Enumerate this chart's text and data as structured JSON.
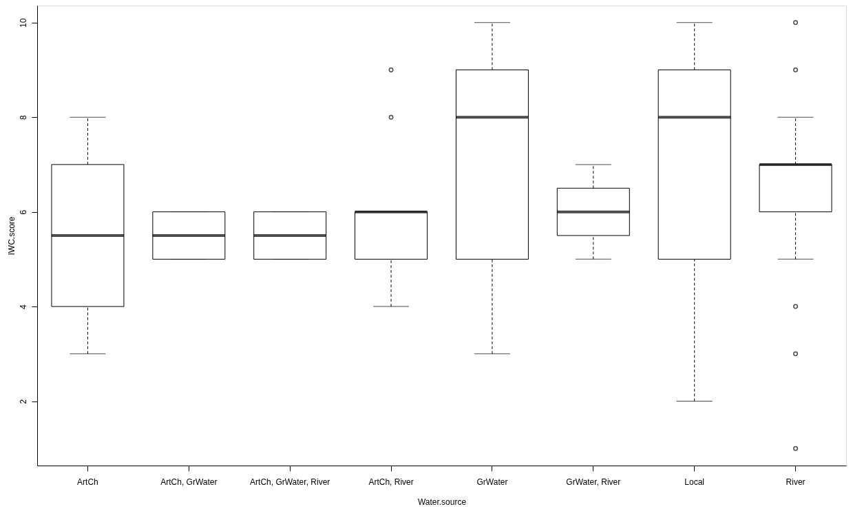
{
  "chart_data": {
    "type": "box",
    "xlabel": "Water.source",
    "ylabel": "IWC.score",
    "categories": [
      "ArtCh",
      "ArtCh, GrWater",
      "ArtCh, GrWater, River",
      "ArtCh, River",
      "GrWater",
      "GrWater, River",
      "Local",
      "River"
    ],
    "boxes": [
      {
        "low": 3,
        "q1": 4,
        "median": 5.5,
        "q3": 7,
        "high": 8
      },
      {
        "low": 5,
        "q1": 5,
        "median": 5.5,
        "q3": 6,
        "high": 6
      },
      {
        "low": 5,
        "q1": 5,
        "median": 5.5,
        "q3": 6,
        "high": 6
      },
      {
        "low": 4,
        "q1": 5,
        "median": 6,
        "q3": 6,
        "high": 6,
        "outliers": [
          8,
          9
        ]
      },
      {
        "low": 3,
        "q1": 5,
        "median": 8,
        "q3": 9,
        "high": 10
      },
      {
        "low": 5,
        "q1": 5.5,
        "median": 6,
        "q3": 6.5,
        "high": 7
      },
      {
        "low": 2,
        "q1": 5,
        "median": 8,
        "q3": 9,
        "high": 10
      },
      {
        "low": 5,
        "q1": 6,
        "median": 7,
        "q3": 7,
        "high": 8,
        "outliers": [
          10,
          9,
          4,
          3,
          1
        ]
      }
    ],
    "ylim": [
      0.64,
      10.36
    ],
    "yticks": [
      2,
      4,
      6,
      8,
      10
    ],
    "grid": false
  }
}
